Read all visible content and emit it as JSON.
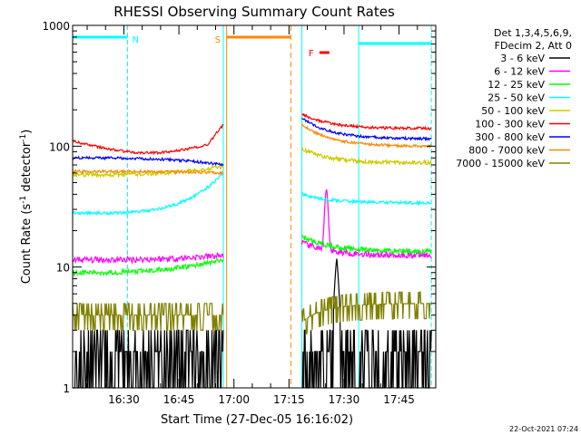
{
  "chart_data": {
    "type": "line",
    "title": "RHESSI Observing Summary Count Rates",
    "xlabel": "Start Time (27-Dec-05 16:16:02)",
    "ylabel_main": "Count Rate (s",
    "ylabel_sup1": "-1",
    "ylabel_mid": " detector",
    "ylabel_sup2": "-1",
    "ylabel_end": ")",
    "y_scale": "log",
    "ylim": [
      1,
      1000
    ],
    "xlim_minutes": [
      16.03,
      115.0
    ],
    "x_ticks": [
      {
        "label": "16:30",
        "min": 30
      },
      {
        "label": "16:45",
        "min": 45
      },
      {
        "label": "17:00",
        "min": 60
      },
      {
        "label": "17:15",
        "min": 75
      },
      {
        "label": "17:30",
        "min": 90
      },
      {
        "label": "17:45",
        "min": 105
      }
    ],
    "y_ticks": [
      {
        "label": "1000",
        "value": 1000
      },
      {
        "label": "100",
        "value": 100
      },
      {
        "label": "10",
        "value": 10
      },
      {
        "label": "1",
        "value": 1
      }
    ],
    "legend_header": [
      "Det 1,3,4,5,6,9,",
      "FDecim 2, Att 0"
    ],
    "legend_placement": "right",
    "series": [
      {
        "name": "3 - 6 keV",
        "color": "#000000"
      },
      {
        "name": "6 - 12 keV",
        "color": "#ff00ff"
      },
      {
        "name": "12 - 25 keV",
        "color": "#00ff00"
      },
      {
        "name": "25 - 50 keV",
        "color": "#00ffff"
      },
      {
        "name": "50 - 100 keV",
        "color": "#cccc00"
      },
      {
        "name": "100 - 300 keV",
        "color": "#ff0000"
      },
      {
        "name": "300 - 800 keV",
        "color": "#0000ff"
      },
      {
        "name": "800 - 7000 keV",
        "color": "#ff8800"
      },
      {
        "name": "7000 - 15000 keV",
        "color": "#808000"
      }
    ],
    "segments": [
      {
        "start": 16.03,
        "end": 57.1
      },
      {
        "start": 78.5,
        "end": 113.8
      }
    ],
    "annotations": [
      {
        "label": "N",
        "color": "#00ffff",
        "bar_start": 16.03,
        "bar_end": 31.0,
        "line_style": "dashed",
        "line_at": 31.0
      },
      {
        "label": "S",
        "color": "#ff8800",
        "bar_start": 58.0,
        "bar_end": 75.5,
        "line_style": "solid",
        "line_at": 58.0
      },
      {
        "label": "F",
        "color": "#ff0000",
        "bar_start": 83.3,
        "bar_end": 86.0,
        "line_style": "none",
        "line_at": 0
      }
    ],
    "timestamp": "22-Oct-2021 07:24"
  }
}
